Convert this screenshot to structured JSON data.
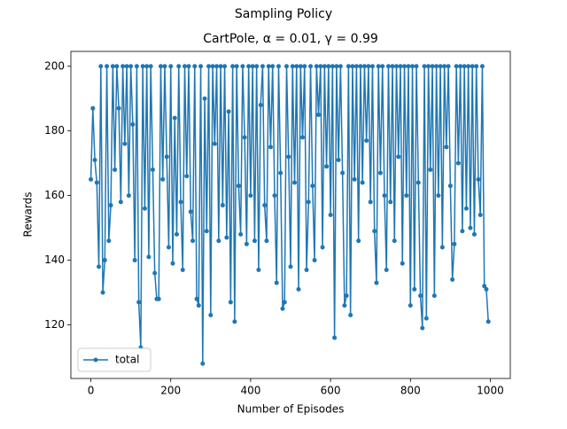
{
  "chart_data": {
    "type": "line",
    "suptitle": "Sampling Policy",
    "title": "CartPole, α = 0.01, γ = 0.99",
    "xlabel": "Number of Episodes",
    "ylabel": "Rewards",
    "x": [
      0,
      5,
      10,
      15,
      20,
      25,
      30,
      35,
      40,
      45,
      50,
      55,
      60,
      65,
      70,
      75,
      80,
      85,
      90,
      95,
      100,
      105,
      110,
      115,
      120,
      125,
      130,
      135,
      140,
      145,
      150,
      155,
      160,
      165,
      170,
      175,
      180,
      185,
      190,
      195,
      200,
      205,
      210,
      215,
      220,
      225,
      230,
      235,
      240,
      245,
      250,
      255,
      260,
      265,
      270,
      275,
      280,
      285,
      290,
      295,
      300,
      305,
      310,
      315,
      320,
      325,
      330,
      335,
      340,
      345,
      350,
      355,
      360,
      365,
      370,
      375,
      380,
      385,
      390,
      395,
      400,
      405,
      410,
      415,
      420,
      425,
      430,
      435,
      440,
      445,
      450,
      455,
      460,
      465,
      470,
      475,
      480,
      485,
      490,
      495,
      500,
      505,
      510,
      515,
      520,
      525,
      530,
      535,
      540,
      545,
      550,
      555,
      560,
      565,
      570,
      575,
      580,
      585,
      590,
      595,
      600,
      605,
      610,
      615,
      620,
      625,
      630,
      635,
      640,
      645,
      650,
      655,
      660,
      665,
      670,
      675,
      680,
      685,
      690,
      695,
      700,
      705,
      710,
      715,
      720,
      725,
      730,
      735,
      740,
      745,
      750,
      755,
      760,
      765,
      770,
      775,
      780,
      785,
      790,
      795,
      800,
      805,
      810,
      815,
      820,
      825,
      830,
      835,
      840,
      845,
      850,
      855,
      860,
      865,
      870,
      875,
      880,
      885,
      890,
      895,
      900,
      905,
      910,
      915,
      920,
      925,
      930,
      935,
      940,
      945,
      950,
      955,
      960,
      965,
      970,
      975,
      980,
      985,
      990,
      995
    ],
    "series": [
      {
        "name": "total",
        "color": "#1f77b4",
        "values": [
          165,
          187,
          171,
          164,
          138,
          200,
          130,
          140,
          200,
          146,
          157,
          200,
          168,
          200,
          187,
          158,
          200,
          176,
          200,
          160,
          200,
          182,
          140,
          200,
          127,
          113,
          200,
          156,
          200,
          141,
          200,
          168,
          136,
          128,
          128,
          200,
          165,
          200,
          172,
          144,
          200,
          139,
          184,
          148,
          200,
          158,
          137,
          200,
          166,
          200,
          155,
          146,
          200,
          128,
          126,
          200,
          108,
          190,
          149,
          200,
          123,
          200,
          176,
          200,
          146,
          200,
          157,
          200,
          147,
          186,
          127,
          200,
          121,
          200,
          163,
          148,
          200,
          178,
          145,
          200,
          160,
          200,
          146,
          200,
          137,
          188,
          200,
          157,
          146,
          200,
          175,
          200,
          160,
          133,
          200,
          167,
          125,
          127,
          200,
          172,
          138,
          200,
          164,
          200,
          131,
          200,
          178,
          200,
          137,
          158,
          200,
          163,
          140,
          200,
          185,
          200,
          144,
          200,
          169,
          200,
          154,
          200,
          116,
          200,
          171,
          200,
          167,
          126,
          129,
          200,
          123,
          200,
          165,
          200,
          146,
          200,
          164,
          200,
          177,
          200,
          158,
          200,
          149,
          133,
          200,
          167,
          200,
          160,
          137,
          200,
          158,
          200,
          146,
          200,
          172,
          200,
          139,
          200,
          160,
          200,
          126,
          200,
          131,
          200,
          164,
          129,
          119,
          200,
          122,
          200,
          168,
          200,
          129,
          200,
          160,
          200,
          144,
          200,
          175,
          200,
          163,
          134,
          145,
          200,
          170,
          200,
          149,
          200,
          156,
          200,
          150,
          200,
          148,
          200,
          165,
          154,
          200,
          132,
          131,
          121
        ]
      }
    ],
    "xlim": [
      -50,
      1050
    ],
    "xticks": [
      0,
      200,
      400,
      600,
      800,
      1000
    ],
    "ylim": [
      103.4,
      204.6
    ],
    "yticks": [
      120,
      140,
      160,
      180,
      200
    ],
    "legend": "lower left"
  }
}
